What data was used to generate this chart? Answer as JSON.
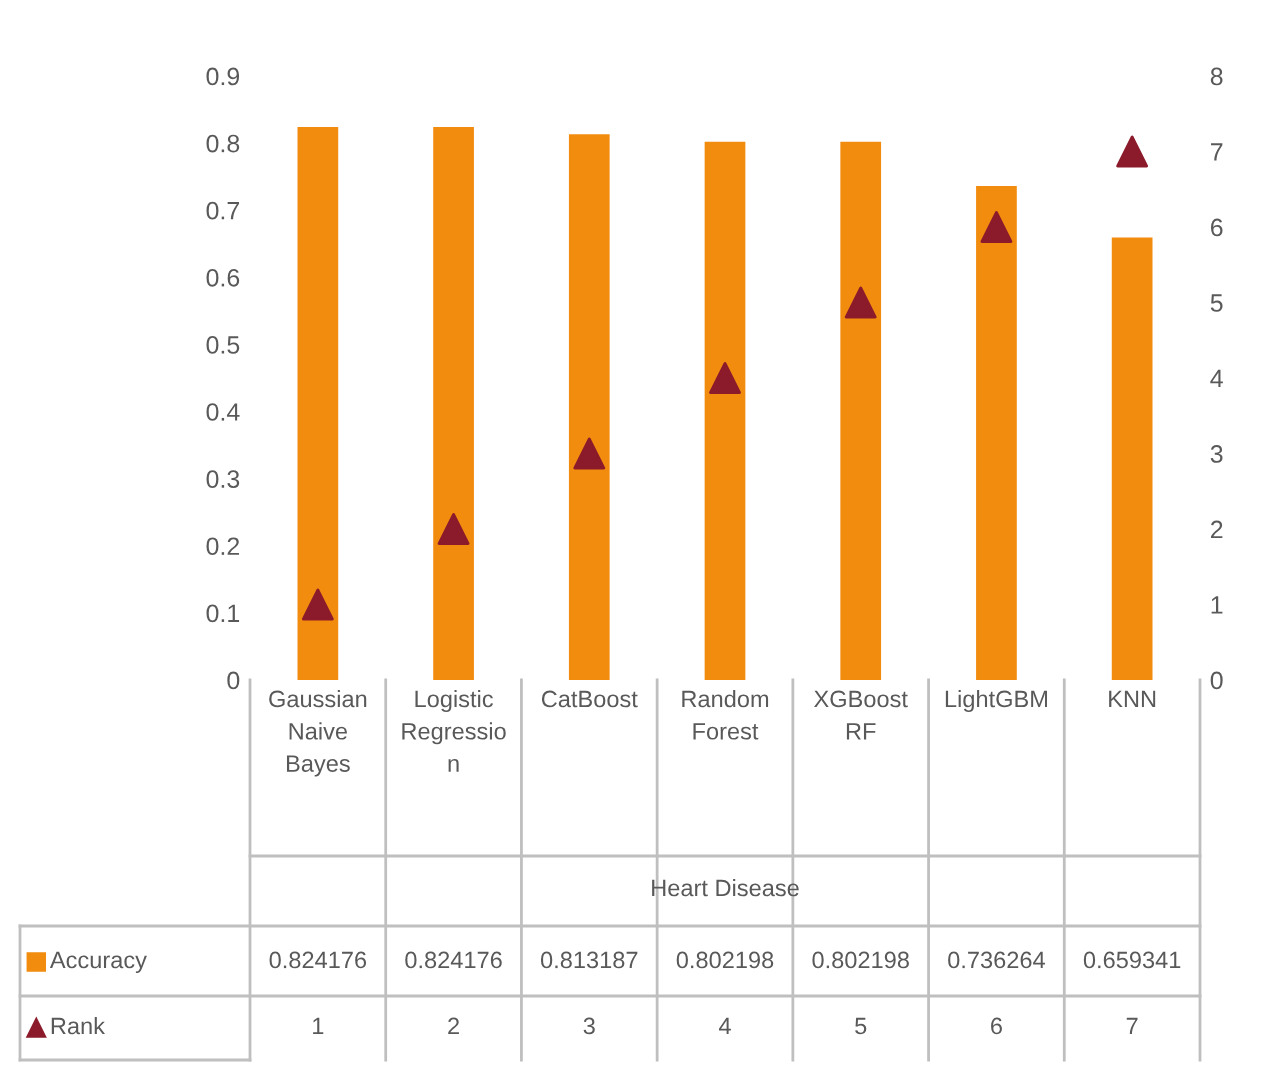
{
  "chart_data": {
    "type": "bar",
    "xlabel": "Heart Disease",
    "categories": [
      "Gaussian\nNaive\nBayes",
      "Logistic\nRegressio\nn",
      "CatBoost",
      "Random\nForest",
      "XGBoost\nRF",
      "LightGBM",
      "KNN"
    ],
    "series": [
      {
        "name": "Accuracy",
        "color": "#f28c0f",
        "values": [
          0.824176,
          0.824176,
          0.813187,
          0.802198,
          0.802198,
          0.736264,
          0.659341
        ]
      },
      {
        "name": "Rank",
        "type": "scatter",
        "axis": "y2",
        "marker": "triangle",
        "color": "#8b1a2b",
        "values": [
          1,
          2,
          3,
          4,
          5,
          6,
          7
        ]
      }
    ],
    "ylim": [
      0,
      0.9
    ],
    "yticks": [
      0,
      0.1,
      0.2,
      0.3,
      0.4,
      0.5,
      0.6,
      0.7,
      0.8,
      0.9
    ],
    "y2lim": [
      0,
      8
    ],
    "y2ticks": [
      0,
      1,
      2,
      3,
      4,
      5,
      6,
      7,
      8
    ],
    "data_labels": true,
    "grid": false,
    "legend": "bottom left"
  }
}
